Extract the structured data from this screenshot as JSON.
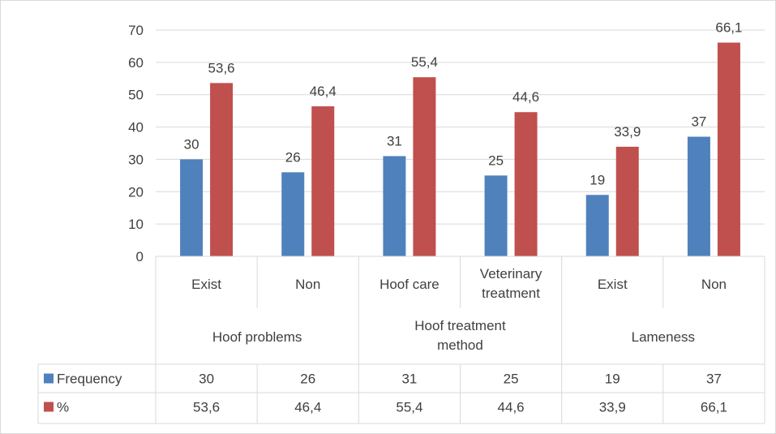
{
  "chart_data": {
    "type": "bar",
    "groups": [
      {
        "label": "Hoof problems",
        "lines": [
          "Hoof problems"
        ],
        "categories": [
          {
            "label": "Exist",
            "lines": [
              "Exist"
            ]
          },
          {
            "label": "Non",
            "lines": [
              "Non"
            ]
          }
        ]
      },
      {
        "label": "Hoof treatment method",
        "lines": [
          "Hoof treatment",
          "method"
        ],
        "categories": [
          {
            "label": "Hoof care",
            "lines": [
              "Hoof care"
            ]
          },
          {
            "label": "Veterinary treatment",
            "lines": [
              "Veterinary",
              "treatment"
            ]
          }
        ]
      },
      {
        "label": "Lameness",
        "lines": [
          "Lameness"
        ],
        "categories": [
          {
            "label": "Exist",
            "lines": [
              "Exist"
            ]
          },
          {
            "label": "Non",
            "lines": [
              "Non"
            ]
          }
        ]
      }
    ],
    "series": [
      {
        "name": "Frequency",
        "color": "#4f81bd",
        "values": [
          30,
          26,
          31,
          25,
          19,
          37
        ],
        "labels": [
          "30",
          "26",
          "31",
          "25",
          "19",
          "37"
        ]
      },
      {
        "name": "%",
        "color": "#c0504d",
        "values": [
          53.6,
          46.4,
          55.4,
          44.6,
          33.9,
          66.1
        ],
        "labels": [
          "53,6",
          "46,4",
          "55,4",
          "44,6",
          "33,9",
          "66,1"
        ]
      }
    ],
    "ylim": [
      0,
      70
    ],
    "yticks": [
      0,
      10,
      20,
      30,
      40,
      50,
      60,
      70
    ],
    "grid": true,
    "legend": "data-table"
  }
}
